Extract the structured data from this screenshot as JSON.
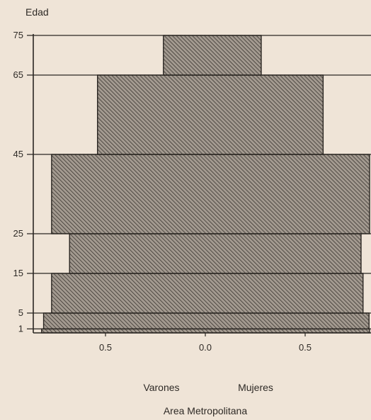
{
  "chart_data": {
    "type": "bar",
    "orientation": "horizontal",
    "title": "",
    "ylabel": "Edad",
    "xlabel": "",
    "caption": "Area Metropolitana",
    "left_label": "Varones",
    "right_label": "Mujeres",
    "x_tick_labels": [
      "0.5",
      "0.0",
      "0.5"
    ],
    "y_tick_labels": [
      "1",
      "5",
      "15",
      "25",
      "45",
      "65",
      "75"
    ],
    "age_bins": [
      {
        "from": 0,
        "to": 1,
        "varones": 0.82,
        "mujeres": 0.83
      },
      {
        "from": 1,
        "to": 5,
        "varones": 0.81,
        "mujeres": 0.82
      },
      {
        "from": 5,
        "to": 15,
        "varones": 0.77,
        "mujeres": 0.79
      },
      {
        "from": 15,
        "to": 25,
        "varones": 0.68,
        "mujeres": 0.78
      },
      {
        "from": 25,
        "to": 45,
        "varones": 0.77,
        "mujeres": 0.83
      },
      {
        "from": 45,
        "to": 65,
        "varones": 0.54,
        "mujeres": 0.59
      },
      {
        "from": 65,
        "to": 75,
        "varones": 0.21,
        "mujeres": 0.28
      }
    ],
    "xlim": [
      -0.9,
      0.9
    ],
    "ylim": [
      0,
      75
    ],
    "colors": {
      "fill": "#a39a90",
      "hatch": "#3a3530",
      "line": "#2a2622"
    }
  }
}
